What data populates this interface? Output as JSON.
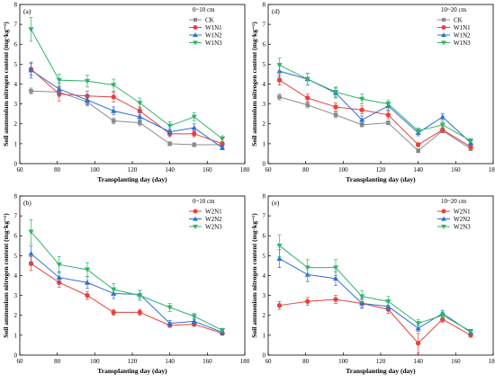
{
  "chart_data": [
    {
      "type": "line",
      "panel": "(a)",
      "depth": "0~10 cm",
      "xlabel": "Transplanting day (day)",
      "ylabel": "Soil ammonium nitrogen content (mg·kg⁻¹)",
      "xlim": [
        60,
        180
      ],
      "ylim": [
        0,
        8
      ],
      "xticks": [
        60,
        80,
        100,
        120,
        140,
        160,
        180
      ],
      "yticks": [
        0,
        1,
        2,
        3,
        4,
        5,
        6,
        7,
        8
      ],
      "x": [
        66,
        81,
        96,
        110,
        124,
        140,
        153,
        168
      ],
      "legend_position": "top-right",
      "series": [
        {
          "name": "CK",
          "color": "#8c8c8c",
          "marker": "square",
          "values": [
            3.65,
            3.6,
            3.1,
            2.15,
            2.05,
            1.0,
            0.95,
            0.95
          ],
          "errors": [
            0.15,
            0.25,
            0.2,
            0.15,
            0.15,
            0.1,
            0.1,
            0.1
          ]
        },
        {
          "name": "W1N1",
          "color": "#e8413c",
          "marker": "circle",
          "values": [
            4.75,
            3.5,
            3.4,
            3.35,
            2.65,
            1.5,
            1.5,
            1.0
          ],
          "errors": [
            0.3,
            0.35,
            0.25,
            0.25,
            0.2,
            0.15,
            0.15,
            0.1
          ]
        },
        {
          "name": "W1N2",
          "color": "#2f6fd1",
          "marker": "triangle-up",
          "values": [
            4.7,
            3.75,
            3.2,
            2.65,
            2.35,
            1.6,
            1.8,
            0.8
          ],
          "errors": [
            0.4,
            0.3,
            0.25,
            0.2,
            0.2,
            0.15,
            0.2,
            0.1
          ]
        },
        {
          "name": "W1N3",
          "color": "#2fb56a",
          "marker": "triangle-down",
          "values": [
            6.75,
            4.2,
            4.15,
            3.95,
            3.05,
            1.9,
            2.35,
            1.25
          ],
          "errors": [
            0.6,
            0.3,
            0.3,
            0.3,
            0.25,
            0.2,
            0.2,
            0.15
          ]
        }
      ]
    },
    {
      "type": "line",
      "panel": "(d)",
      "depth": "10~20 cm",
      "xlabel": "Transplanting day (day)",
      "ylabel": "Soil ammonium nitrogen content (mg·kg⁻¹)",
      "xlim": [
        60,
        180
      ],
      "ylim": [
        0,
        8
      ],
      "xticks": [
        60,
        80,
        100,
        120,
        140,
        160,
        180
      ],
      "yticks": [
        0,
        1,
        2,
        3,
        4,
        5,
        6,
        7,
        8
      ],
      "x": [
        66,
        81,
        96,
        110,
        124,
        140,
        153,
        168
      ],
      "legend_position": "top-right",
      "series": [
        {
          "name": "CK",
          "color": "#8c8c8c",
          "marker": "square",
          "values": [
            3.35,
            2.95,
            2.45,
            1.95,
            2.05,
            0.65,
            1.65,
            0.75
          ],
          "errors": [
            0.15,
            0.15,
            0.15,
            0.1,
            0.1,
            0.1,
            0.1,
            0.1
          ]
        },
        {
          "name": "W1N1",
          "color": "#e8413c",
          "marker": "circle",
          "values": [
            4.2,
            3.3,
            2.85,
            2.7,
            2.45,
            0.95,
            1.7,
            0.85
          ],
          "errors": [
            0.25,
            0.2,
            0.2,
            0.2,
            0.2,
            0.1,
            0.15,
            0.1
          ]
        },
        {
          "name": "W1N2",
          "color": "#2f6fd1",
          "marker": "triangle-up",
          "values": [
            4.65,
            4.25,
            3.55,
            2.2,
            2.9,
            1.55,
            2.35,
            1.05
          ],
          "errors": [
            0.3,
            0.3,
            0.25,
            0.2,
            0.2,
            0.15,
            0.15,
            0.1
          ]
        },
        {
          "name": "W1N3",
          "color": "#2fb56a",
          "marker": "triangle-down",
          "values": [
            4.95,
            4.25,
            3.6,
            3.25,
            3.0,
            1.65,
            1.95,
            1.15
          ],
          "errors": [
            0.35,
            0.3,
            0.25,
            0.25,
            0.2,
            0.15,
            0.15,
            0.1
          ]
        }
      ]
    },
    {
      "type": "line",
      "panel": "(b)",
      "depth": "0~10 cm",
      "xlabel": "Transplanting day (day)",
      "ylabel": "Soil ammonium nitrogen content (mg·kg⁻¹)",
      "xlim": [
        60,
        180
      ],
      "ylim": [
        0,
        8
      ],
      "xticks": [
        60,
        80,
        100,
        120,
        140,
        160,
        180
      ],
      "yticks": [
        0,
        1,
        2,
        3,
        4,
        5,
        6,
        7,
        8
      ],
      "x": [
        66,
        81,
        96,
        110,
        124,
        140,
        153,
        168
      ],
      "legend_position": "top-right",
      "series": [
        {
          "name": "W2N1",
          "color": "#e8413c",
          "marker": "circle",
          "values": [
            4.6,
            3.65,
            3.0,
            2.15,
            2.15,
            1.5,
            1.55,
            1.1
          ],
          "errors": [
            0.35,
            0.25,
            0.2,
            0.15,
            0.15,
            0.1,
            0.1,
            0.1
          ]
        },
        {
          "name": "W2N2",
          "color": "#2f6fd1",
          "marker": "triangle-up",
          "values": [
            5.1,
            3.9,
            3.65,
            3.1,
            3.05,
            1.6,
            1.7,
            1.15
          ],
          "errors": [
            0.4,
            0.3,
            0.3,
            0.25,
            0.2,
            0.15,
            0.15,
            0.1
          ]
        },
        {
          "name": "W2N3",
          "color": "#2fb56a",
          "marker": "triangle-down",
          "values": [
            6.2,
            4.55,
            4.3,
            3.3,
            3.0,
            2.4,
            1.95,
            1.25
          ],
          "errors": [
            0.6,
            0.4,
            0.35,
            0.3,
            0.25,
            0.2,
            0.15,
            0.1
          ]
        }
      ]
    },
    {
      "type": "line",
      "panel": "(e)",
      "depth": "10~20 cm",
      "xlabel": "Transplanting day (day)",
      "ylabel": "Soil ammonium nitrogen content (mg·kg⁻¹)",
      "xlim": [
        60,
        180
      ],
      "ylim": [
        0,
        8
      ],
      "xticks": [
        60,
        80,
        100,
        120,
        140,
        160,
        180
      ],
      "yticks": [
        0,
        1,
        2,
        3,
        4,
        5,
        6,
        7,
        8
      ],
      "x": [
        66,
        81,
        96,
        110,
        124,
        140,
        153,
        168
      ],
      "legend_position": "top-right",
      "series": [
        {
          "name": "W2N1",
          "color": "#e8413c",
          "marker": "circle",
          "values": [
            2.5,
            2.7,
            2.8,
            2.6,
            2.3,
            0.6,
            1.8,
            1.0
          ],
          "errors": [
            0.2,
            0.2,
            0.2,
            0.2,
            0.2,
            0.5,
            0.15,
            0.1
          ]
        },
        {
          "name": "W2N2",
          "color": "#2f6fd1",
          "marker": "triangle-up",
          "values": [
            4.85,
            4.05,
            3.85,
            2.6,
            2.45,
            1.35,
            2.1,
            1.15
          ],
          "errors": [
            0.45,
            0.35,
            0.35,
            0.25,
            0.2,
            0.15,
            0.15,
            0.1
          ]
        },
        {
          "name": "W2N3",
          "color": "#2fb56a",
          "marker": "triangle-down",
          "values": [
            5.5,
            4.4,
            4.4,
            2.95,
            2.7,
            1.6,
            2.0,
            1.2
          ],
          "errors": [
            0.55,
            0.4,
            0.4,
            0.3,
            0.25,
            0.2,
            0.15,
            0.1
          ]
        }
      ]
    }
  ]
}
